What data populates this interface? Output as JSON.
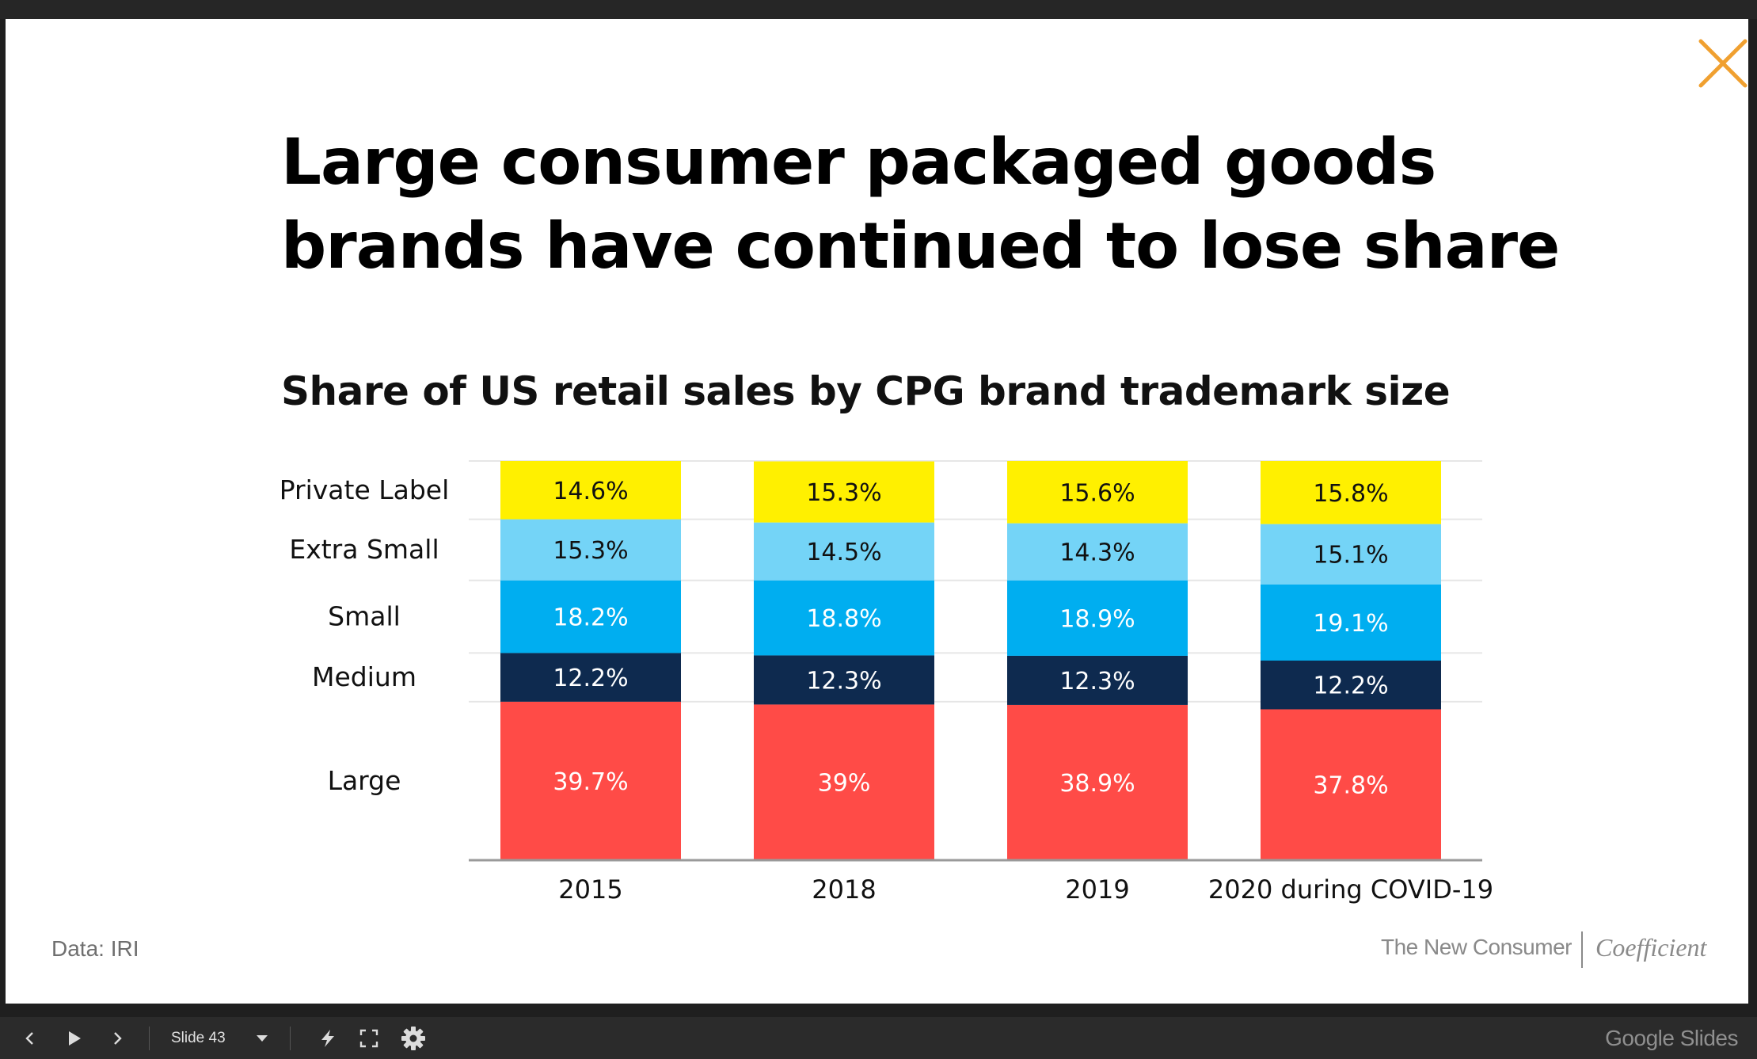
{
  "slide": {
    "title_lines": [
      "Large consumer packaged goods",
      "brands have continued to lose share"
    ],
    "subtitle": "Share of US retail sales by CPG brand trademark size",
    "source": "Data: IRI",
    "brand_primary": "The New Consumer",
    "brand_secondary": "Coefficient"
  },
  "chart_data": {
    "type": "bar",
    "stacked": true,
    "categories": [
      "2015",
      "2018",
      "2019",
      "2020 during COVID-19"
    ],
    "series": [
      {
        "name": "Large",
        "color": "#ff4b47",
        "label_color": "#ffffff",
        "values": [
          39.7,
          39,
          38.9,
          37.8
        ],
        "labels": [
          "39.7%",
          "39%",
          "38.9%",
          "37.8%"
        ]
      },
      {
        "name": "Medium",
        "color": "#0e2a4f",
        "label_color": "#ffffff",
        "values": [
          12.2,
          12.3,
          12.3,
          12.2
        ],
        "labels": [
          "12.2%",
          "12.3%",
          "12.3%",
          "12.2%"
        ]
      },
      {
        "name": "Small",
        "color": "#00aef0",
        "label_color": "#ffffff",
        "values": [
          18.2,
          18.8,
          18.9,
          19.1
        ],
        "labels": [
          "18.2%",
          "18.8%",
          "18.9%",
          "19.1%"
        ]
      },
      {
        "name": "Extra Small",
        "color": "#74d4f7",
        "label_color": "#111111",
        "values": [
          15.3,
          14.5,
          14.3,
          15.1
        ],
        "labels": [
          "15.3%",
          "14.5%",
          "14.3%",
          "15.1%"
        ]
      },
      {
        "name": "Private Label",
        "color": "#fff000",
        "label_color": "#111111",
        "values": [
          14.6,
          15.3,
          15.6,
          15.8
        ],
        "labels": [
          "14.6%",
          "15.3%",
          "15.6%",
          "15.8%"
        ]
      }
    ],
    "ylim": [
      0,
      100
    ],
    "grid": true,
    "legend": "left"
  },
  "controls": {
    "slide_label": "Slide 43",
    "product_name": "Google Slides",
    "icons": [
      "previous-icon",
      "play-icon",
      "next-icon",
      "dropdown-icon",
      "laser-pointer-icon",
      "fullscreen-icon",
      "settings-icon",
      "close-icon"
    ]
  },
  "colors": {
    "close": "#f0a030",
    "background": "#ffffff",
    "frame": "#262626"
  }
}
